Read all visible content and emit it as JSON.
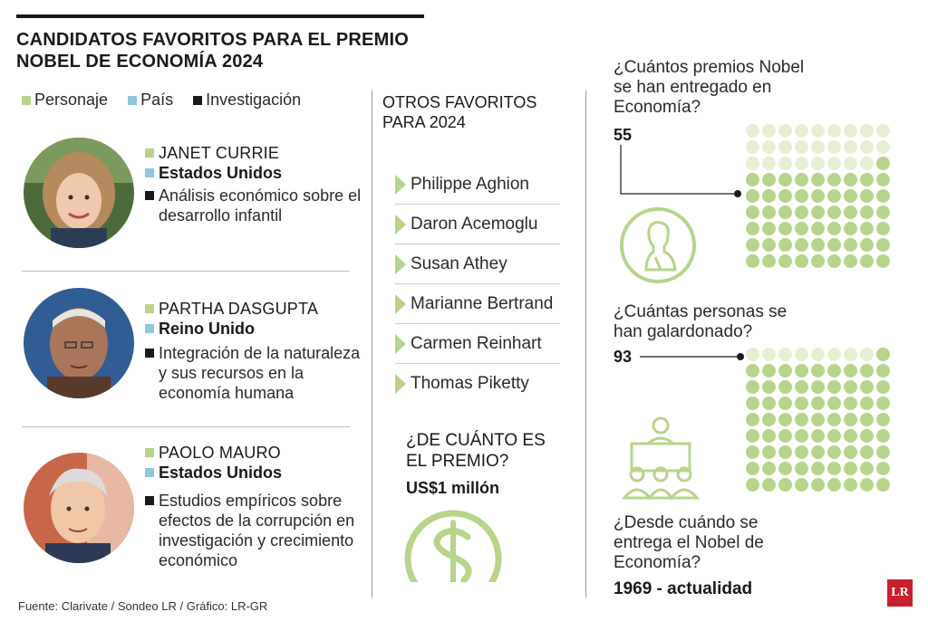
{
  "title": "CANDIDATOS FAVORITOS PARA EL PREMIO NOBEL DE ECONOMÍA 2024",
  "legend": {
    "personaje": "Personaje",
    "pais": "País",
    "investigacion": "Investigación"
  },
  "colors": {
    "green": "#b7d48a",
    "light_green": "#e6efd4",
    "blue": "#8fc6e0",
    "black": "#1a1a1a",
    "logo_red": "#c8202c"
  },
  "candidates": [
    {
      "name": "JANET CURRIE",
      "country": "Estados Unidos",
      "research": "Análisis económico sobre el desarrollo infantil"
    },
    {
      "name": "PARTHA DASGUPTA",
      "country": "Reino Unido",
      "research": "Integración de la naturaleza y sus recursos en la economía humana"
    },
    {
      "name": "PAOLO MAURO",
      "country": "Estados Unidos",
      "research": "Estudios empíricos sobre efectos de la corrupción en investigación y crecimiento económico"
    }
  ],
  "others": {
    "title": "OTROS FAVORITOS PARA 2024",
    "names": [
      "Philippe Aghion",
      "Daron Acemoglu",
      "Susan Athey",
      "Marianne Bertrand",
      "Carmen Reinhart",
      "Thomas Piketty"
    ]
  },
  "prize": {
    "question": "¿DE CUÁNTO ES EL PREMIO?",
    "amount": "US$1 millón",
    "icon": "dollar-icon"
  },
  "stats": {
    "prizes_question": "¿Cuántos premios Nobel se han entregado en Economía?",
    "prizes_count": "55",
    "prizes_value": 55,
    "people_question": "¿Cuántas personas se han galardonado?",
    "people_count": "93",
    "people_value": 93,
    "since_question": "¿Desde cuándo se entrega el Nobel de Economía?",
    "since_answer": "1969 - actualidad"
  },
  "source": "Fuente: Clarivate / Sondeo LR / Gráfico: LR-GR",
  "logo": "LR"
}
